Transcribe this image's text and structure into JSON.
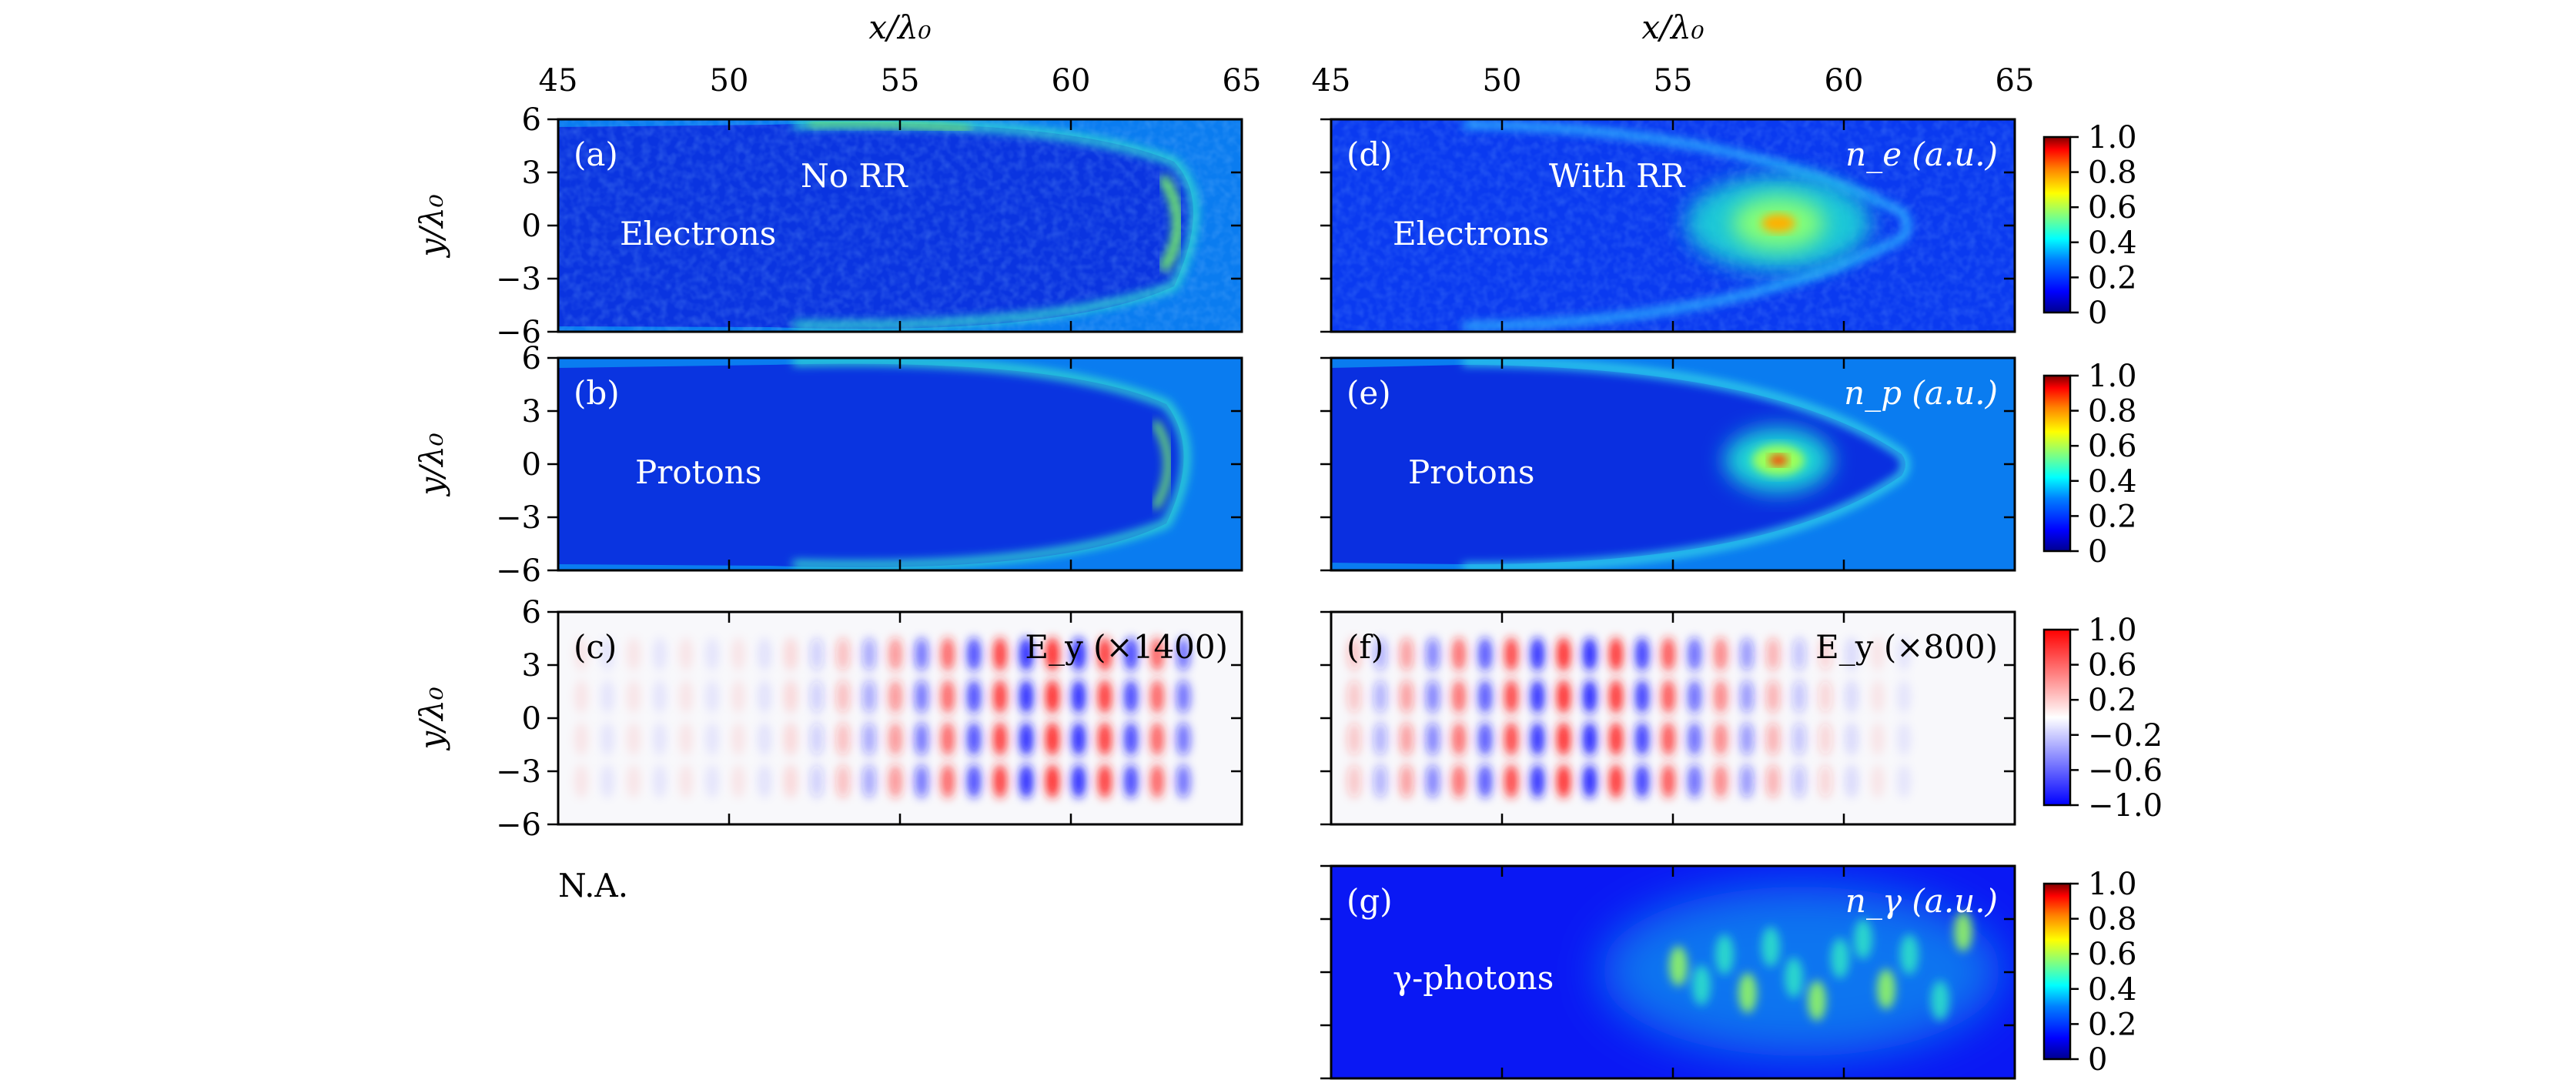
{
  "x_axis_label": "x/λ₀",
  "y_axis_label": "y/λ₀",
  "x_ticks": [
    "45",
    "50",
    "55",
    "60",
    "65"
  ],
  "y_ticks": [
    "6",
    "3",
    "0",
    "−3",
    "−6"
  ],
  "colormaps": {
    "jet": [
      "#00008f",
      "#0000ff",
      "#0080ff",
      "#00ffff",
      "#80ff80",
      "#ffff00",
      "#ff8000",
      "#ff0000",
      "#800000"
    ],
    "bwr": [
      "#0000ff",
      "#ffffff",
      "#ff0000"
    ]
  },
  "panels": [
    {
      "id": "a",
      "label": "(a)",
      "species": "Electrons",
      "title": "No RR",
      "quantity": "",
      "type": "density"
    },
    {
      "id": "b",
      "label": "(b)",
      "species": "Protons",
      "title": "",
      "quantity": "",
      "type": "density"
    },
    {
      "id": "c",
      "label": "(c)",
      "species": "",
      "title": "",
      "quantity": "E_y (×1400)",
      "type": "field"
    },
    {
      "id": "d",
      "label": "(d)",
      "species": "Electrons",
      "title": "With RR",
      "quantity": "n_e (a.u.)",
      "type": "density"
    },
    {
      "id": "e",
      "label": "(e)",
      "species": "Protons",
      "title": "",
      "quantity": "n_p (a.u.)",
      "type": "density"
    },
    {
      "id": "f",
      "label": "(f)",
      "species": "",
      "title": "",
      "quantity": "E_y (×800)",
      "type": "field"
    },
    {
      "id": "g",
      "label": "(g)",
      "species": "γ-photons",
      "title": "",
      "quantity": "n_γ (a.u.)",
      "type": "density"
    }
  ],
  "na_label": "N.A.",
  "colorbars": [
    {
      "id": "cb-ne",
      "cmap": "jet",
      "ticks": [
        "1.0",
        "0.8",
        "0.6",
        "0.4",
        "0.2",
        "0"
      ]
    },
    {
      "id": "cb-np",
      "cmap": "jet",
      "ticks": [
        "1.0",
        "0.8",
        "0.6",
        "0.4",
        "0.2",
        "0"
      ]
    },
    {
      "id": "cb-ey",
      "cmap": "bwr",
      "ticks": [
        "1.0",
        "0.6",
        "0.2",
        "−0.2",
        "−0.6",
        "−1.0"
      ]
    },
    {
      "id": "cb-ng",
      "cmap": "jet",
      "ticks": [
        "1.0",
        "0.8",
        "0.6",
        "0.4",
        "0.2",
        "0"
      ]
    }
  ],
  "chart_data": {
    "type": "heatmap",
    "xlim": [
      45,
      65
    ],
    "ylim": [
      -6,
      6
    ],
    "xlabel": "x/λ₀",
    "ylabel": "y/λ₀",
    "colorbar_ranges": {
      "n_e": [
        0,
        1.0
      ],
      "n_p": [
        0,
        1.0
      ],
      "E_y": [
        -1.0,
        1.0
      ],
      "n_gamma": [
        0,
        1.0
      ]
    },
    "panels": [
      "(a) Electrons, No RR",
      "(b) Protons",
      "(c) E_y (×1400)",
      "(d) Electrons, With RR, n_e (a.u.)",
      "(e) Protons, n_p (a.u.)",
      "(f) E_y (×800)",
      "(g) γ-photons, n_γ (a.u.)"
    ]
  }
}
